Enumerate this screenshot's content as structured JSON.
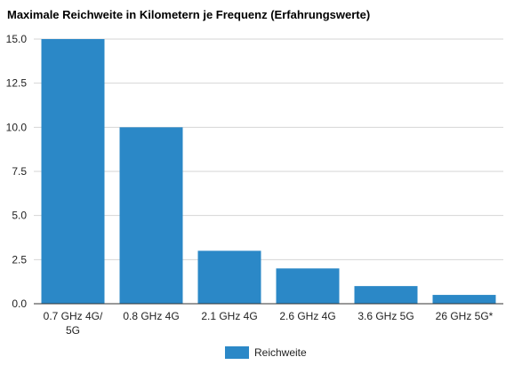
{
  "chart_data": {
    "type": "bar",
    "title": "Maximale Reichweite in Kilometern je Frequenz (Erfahrungswerte)",
    "xlabel": "",
    "ylabel": "",
    "categories": [
      "0.7 GHz 4G/ 5G",
      "0.8 GHz 4G",
      "2.1 GHz 4G",
      "2.6 GHz 4G",
      "3.6 GHz 5G",
      "26 GHz 5G*"
    ],
    "series": [
      {
        "name": "Reichweite",
        "values": [
          15.0,
          10.0,
          3.0,
          2.0,
          1.0,
          0.5
        ],
        "color": "#2b88c7"
      }
    ],
    "ylim": [
      0,
      15
    ],
    "yticks": [
      "0.0",
      "2.5",
      "5.0",
      "7.5",
      "10.0",
      "12.5",
      "15.0"
    ],
    "grid": true,
    "legend_position": "bottom"
  }
}
